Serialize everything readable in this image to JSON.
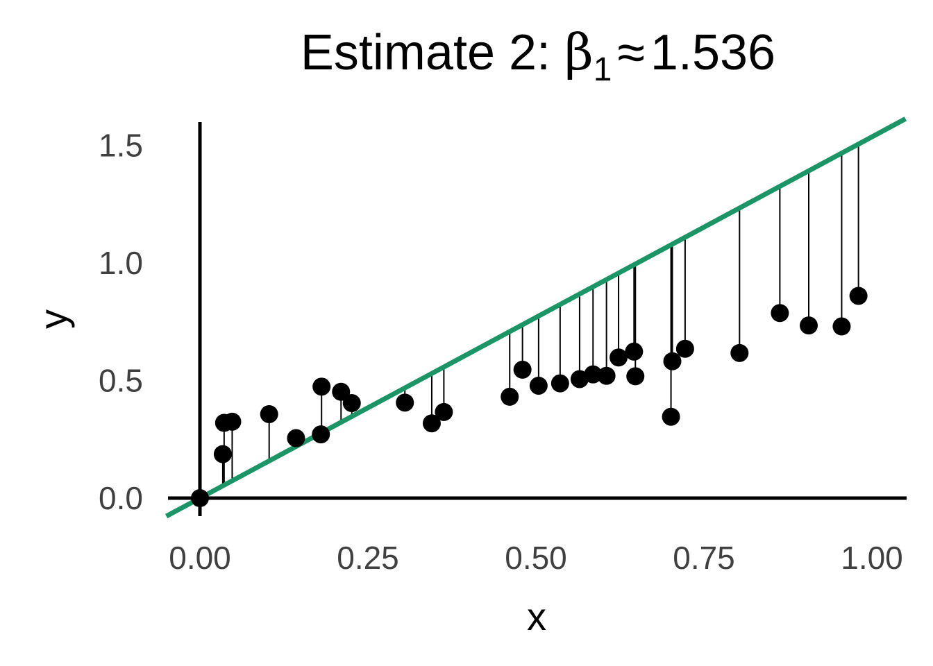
{
  "chart_data": {
    "type": "scatter",
    "title_prefix": "Estimate 2: ",
    "title_symbol": "β",
    "title_subscript": "1",
    "title_rel": "≈",
    "title_value": "1.536",
    "xlabel": "x",
    "ylabel": "y",
    "xlim": [
      -0.05,
      1.05
    ],
    "ylim": [
      -0.08,
      1.62
    ],
    "x_ticks": [
      "0.00",
      "0.25",
      "0.50",
      "0.75",
      "1.00"
    ],
    "y_ticks": [
      "0.0",
      "0.5",
      "1.0",
      "1.5"
    ],
    "grid": false,
    "fit_line": {
      "intercept": 0,
      "slope": 1.536,
      "color": "#1b9466"
    },
    "residual_color": "#000000",
    "point_color": "#000000",
    "points": {
      "x": [
        0.0,
        0.034,
        0.036,
        0.048,
        0.103,
        0.143,
        0.18,
        0.181,
        0.21,
        0.226,
        0.305,
        0.345,
        0.363,
        0.461,
        0.48,
        0.504,
        0.536,
        0.565,
        0.585,
        0.605,
        0.623,
        0.646,
        0.648,
        0.701,
        0.703,
        0.722,
        0.803,
        0.863,
        0.906,
        0.955,
        0.98
      ],
      "y": [
        0.0,
        0.187,
        0.32,
        0.325,
        0.357,
        0.255,
        0.271,
        0.474,
        0.452,
        0.404,
        0.406,
        0.318,
        0.366,
        0.431,
        0.546,
        0.478,
        0.488,
        0.506,
        0.526,
        0.52,
        0.598,
        0.623,
        0.518,
        0.346,
        0.582,
        0.635,
        0.617,
        0.787,
        0.734,
        0.73,
        0.86
      ]
    }
  }
}
